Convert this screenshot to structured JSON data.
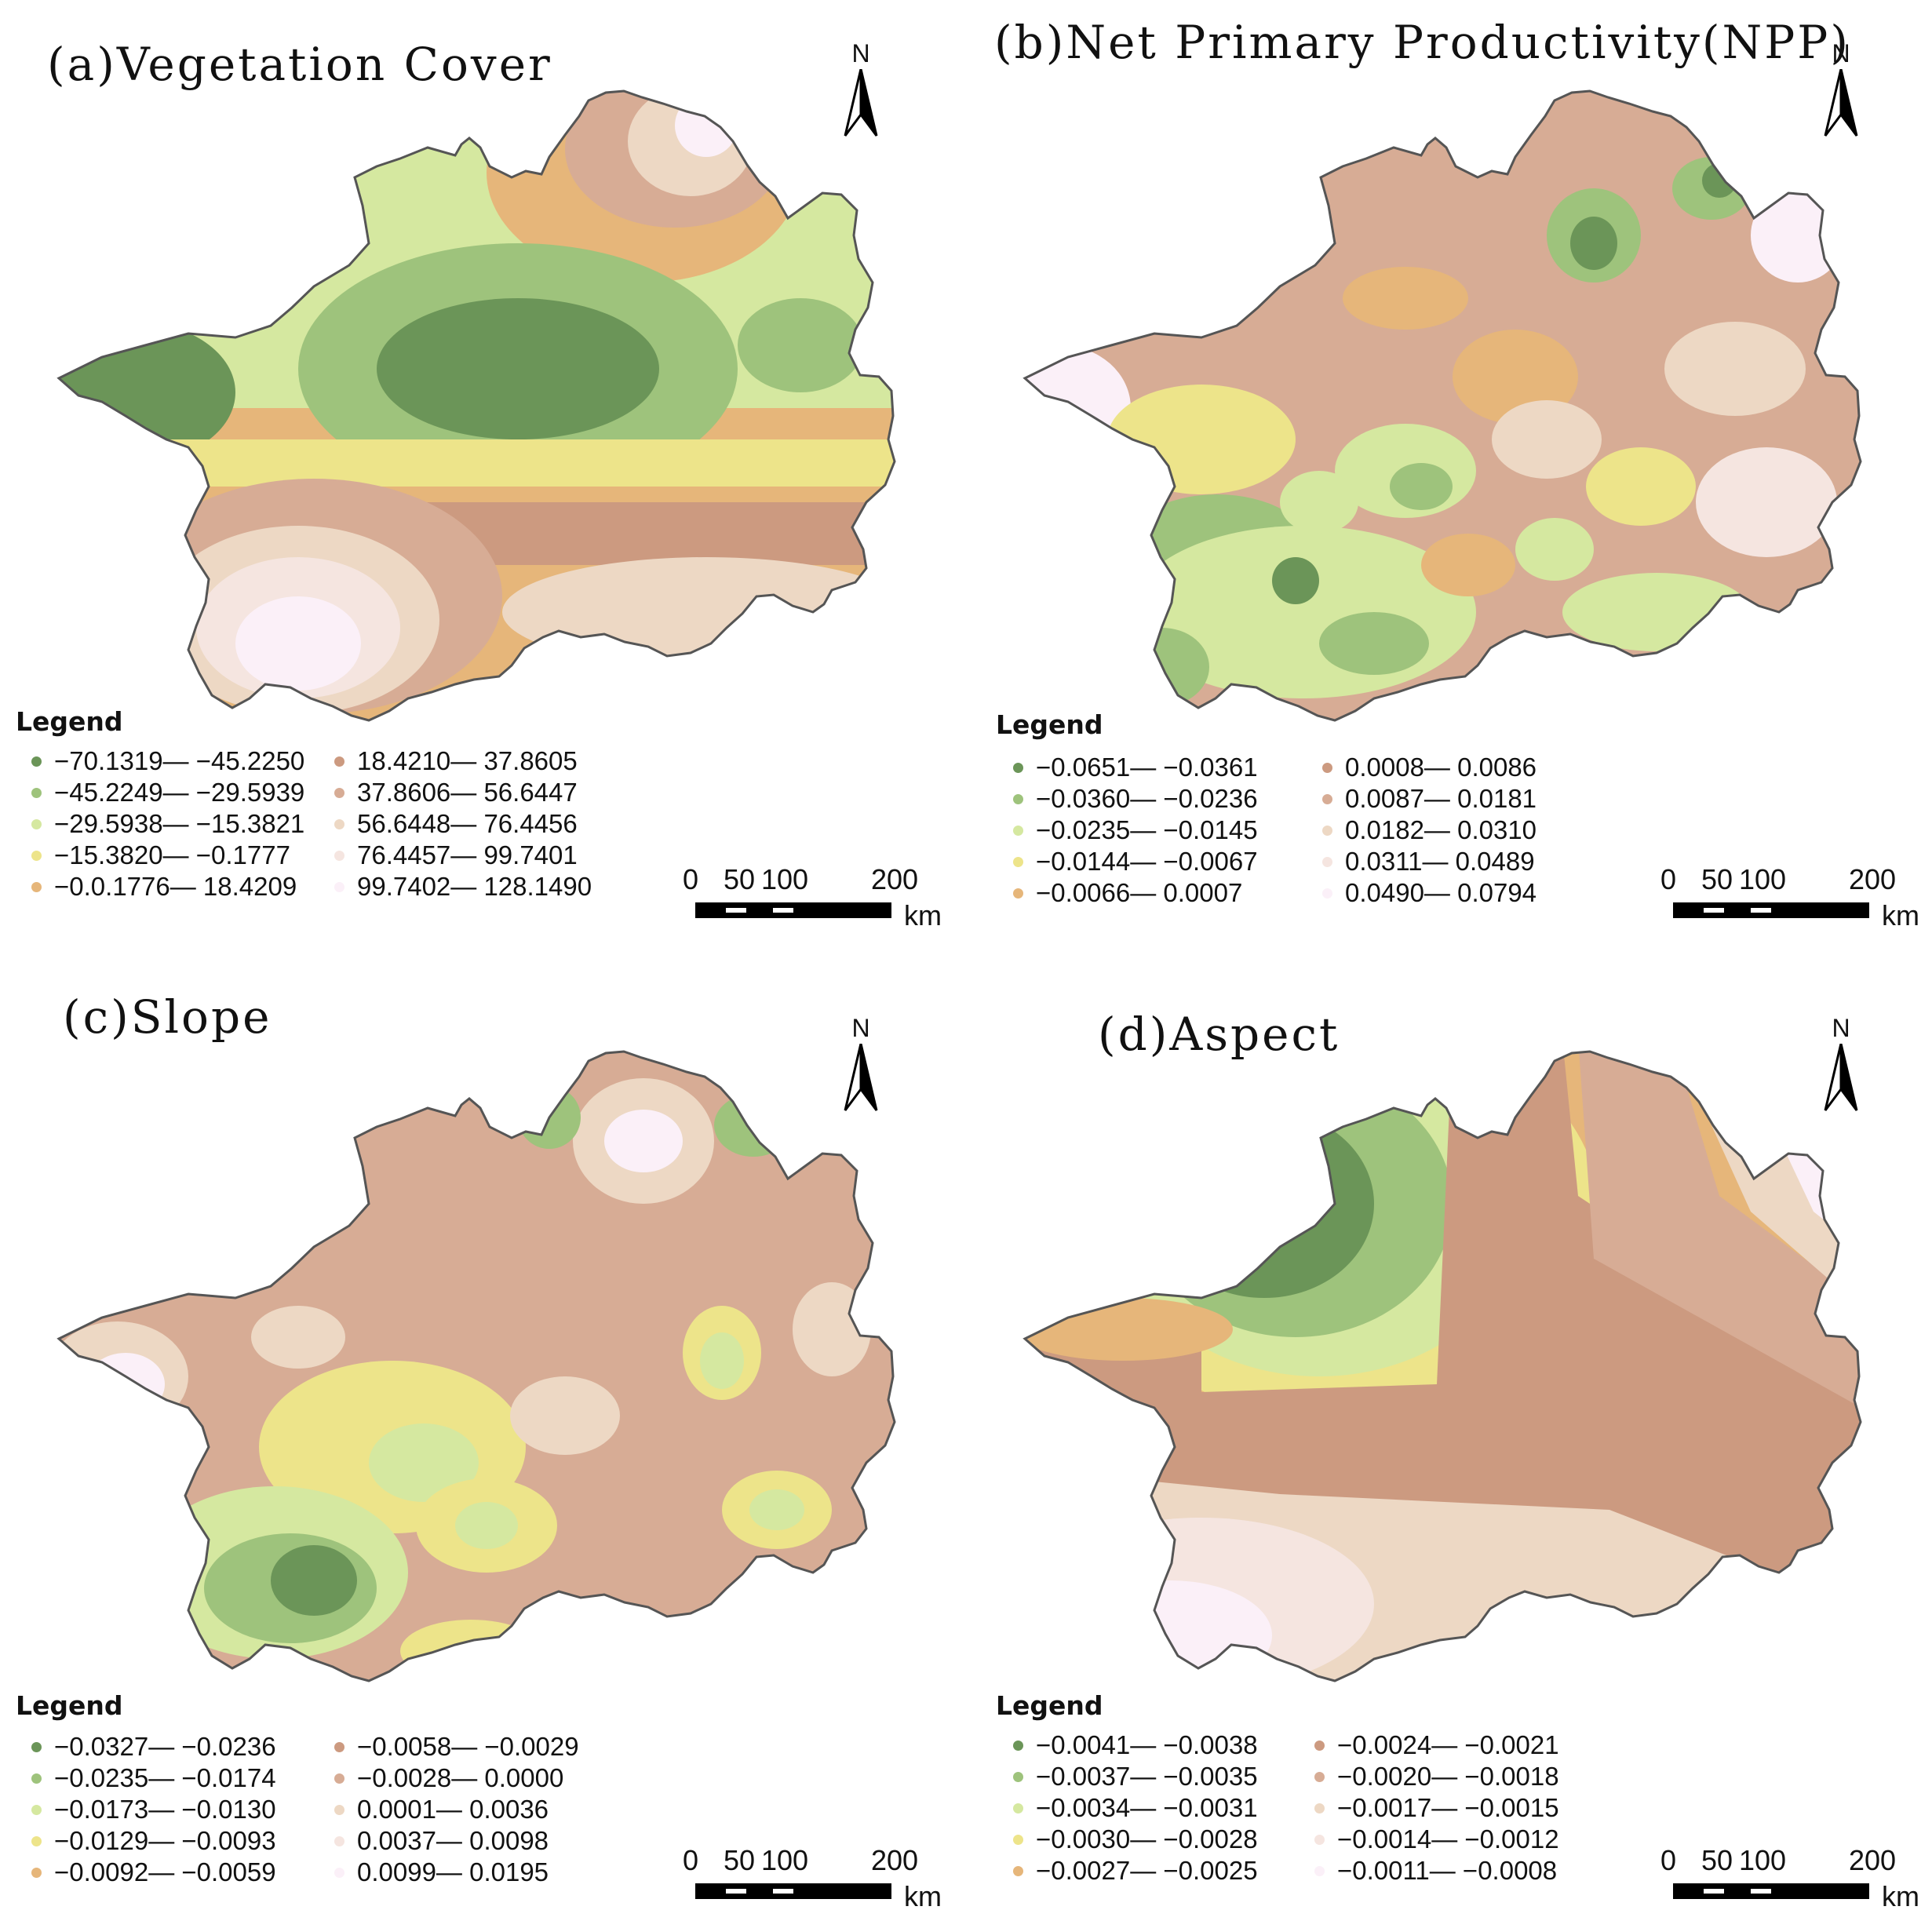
{
  "panels": [
    {
      "id": "a",
      "title": "(a)Vegetation Cover",
      "legend_title": "Legend",
      "north_label": "N",
      "scale": {
        "ticks": [
          "0",
          "50",
          "100",
          "200"
        ],
        "unit": "km"
      },
      "classes": [
        {
          "label": "−70.1319— −45.2250",
          "color": "#6b9558"
        },
        {
          "label": "−45.2249— −29.5939",
          "color": "#9ec37c"
        },
        {
          "label": "−29.5938— −15.3821",
          "color": "#d5e8a0"
        },
        {
          "label": "−15.3820— −0.1777",
          "color": "#ede48a"
        },
        {
          "label": "−0.0.1776— 18.4209",
          "color": "#e6b67a"
        },
        {
          "label": "18.4210— 37.8605",
          "color": "#cc9a80"
        },
        {
          "label": "37.8606— 56.6447",
          "color": "#d7ac95"
        },
        {
          "label": "56.6448— 76.4456",
          "color": "#edd8c4"
        },
        {
          "label": "76.4457— 99.7401",
          "color": "#f5e5e0"
        },
        {
          "label": "99.7402— 128.1490",
          "color": "#fbf0f8"
        }
      ]
    },
    {
      "id": "b",
      "title": "(b)Net Primary Productivity(NPP)",
      "legend_title": "Legend",
      "north_label": "N",
      "scale": {
        "ticks": [
          "0",
          "50",
          "100",
          "200"
        ],
        "unit": "km"
      },
      "classes": [
        {
          "label": "−0.0651— −0.0361",
          "color": "#6b9558"
        },
        {
          "label": "−0.0360— −0.0236",
          "color": "#9ec37c"
        },
        {
          "label": "−0.0235— −0.0145",
          "color": "#d5e8a0"
        },
        {
          "label": "−0.0144— −0.0067",
          "color": "#ede48a"
        },
        {
          "label": "−0.0066— 0.0007",
          "color": "#e6b67a"
        },
        {
          "label": "0.0008— 0.0086",
          "color": "#cc9a80"
        },
        {
          "label": "0.0087— 0.0181",
          "color": "#d7ac95"
        },
        {
          "label": "0.0182— 0.0310",
          "color": "#edd8c4"
        },
        {
          "label": "0.0311— 0.0489",
          "color": "#f5e5e0"
        },
        {
          "label": "0.0490— 0.0794",
          "color": "#fbf0f8"
        }
      ]
    },
    {
      "id": "c",
      "title": "(c)Slope",
      "legend_title": "Legend",
      "north_label": "N",
      "scale": {
        "ticks": [
          "0",
          "50",
          "100",
          "200"
        ],
        "unit": "km"
      },
      "classes": [
        {
          "label": "−0.0327— −0.0236",
          "color": "#6b9558"
        },
        {
          "label": "−0.0235— −0.0174",
          "color": "#9ec37c"
        },
        {
          "label": "−0.0173— −0.0130",
          "color": "#d5e8a0"
        },
        {
          "label": "−0.0129— −0.0093",
          "color": "#ede48a"
        },
        {
          "label": "−0.0092— −0.0059",
          "color": "#e6b67a"
        },
        {
          "label": "−0.0058— −0.0029",
          "color": "#cc9a80"
        },
        {
          "label": "−0.0028— 0.0000",
          "color": "#d7ac95"
        },
        {
          "label": "0.0001— 0.0036",
          "color": "#edd8c4"
        },
        {
          "label": "0.0037— 0.0098",
          "color": "#f5e5e0"
        },
        {
          "label": "0.0099— 0.0195",
          "color": "#fbf0f8"
        }
      ]
    },
    {
      "id": "d",
      "title": "(d)Aspect",
      "legend_title": "Legend",
      "north_label": "N",
      "scale": {
        "ticks": [
          "0",
          "50",
          "100",
          "200"
        ],
        "unit": "km"
      },
      "classes": [
        {
          "label": "−0.0041— −0.0038",
          "color": "#6b9558"
        },
        {
          "label": "−0.0037— −0.0035",
          "color": "#9ec37c"
        },
        {
          "label": "−0.0034— −0.0031",
          "color": "#d5e8a0"
        },
        {
          "label": "−0.0030— −0.0028",
          "color": "#ede48a"
        },
        {
          "label": "−0.0027— −0.0025",
          "color": "#e6b67a"
        },
        {
          "label": "−0.0024— −0.0021",
          "color": "#cc9a80"
        },
        {
          "label": "−0.0020— −0.0018",
          "color": "#d7ac95"
        },
        {
          "label": "−0.0017— −0.0015",
          "color": "#edd8c4"
        },
        {
          "label": "−0.0014— −0.0012",
          "color": "#f5e5e0"
        },
        {
          "label": "−0.0011— −0.0008",
          "color": "#fbf0f8"
        }
      ]
    }
  ]
}
